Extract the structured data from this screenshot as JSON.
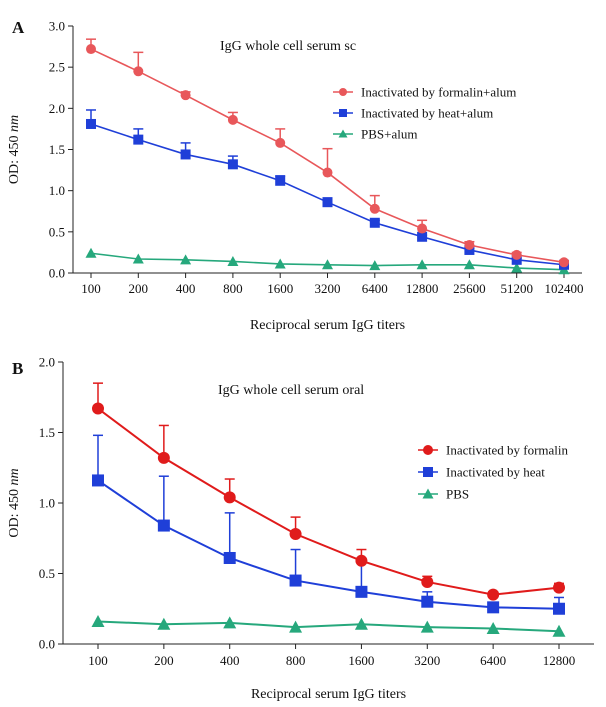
{
  "chart_data": [
    {
      "panel": "A",
      "type": "line",
      "title": "IgG whole cell serum sc",
      "xlabel": "Reciprocal serum IgG titers",
      "ylabel": "OD: 450 nm",
      "ylabel_main": "OD: 450 ",
      "ylabel_unit": "nm",
      "categories": [
        "100",
        "200",
        "400",
        "800",
        "1600",
        "3200",
        "6400",
        "12800",
        "25600",
        "51200",
        "102400"
      ],
      "ylim": [
        0,
        3.0
      ],
      "yticks": [
        "0.0",
        "0.5",
        "1.0",
        "1.5",
        "2.0",
        "2.5",
        "3.0"
      ],
      "legend_position": "top-right",
      "series": [
        {
          "name": "Inactivated by formalin+alum",
          "color": "#e8575a",
          "marker": "circle",
          "values": [
            2.72,
            2.45,
            2.16,
            1.86,
            1.58,
            1.22,
            0.78,
            0.54,
            0.34,
            0.22,
            0.13
          ],
          "errors": [
            0.12,
            0.23,
            0.04,
            0.09,
            0.17,
            0.29,
            0.16,
            0.1,
            0.04,
            0.03,
            0.02
          ]
        },
        {
          "name": "Inactivated by heat+alum",
          "color": "#1f3fd8",
          "marker": "square",
          "values": [
            1.81,
            1.62,
            1.44,
            1.32,
            1.12,
            0.86,
            0.61,
            0.44,
            0.28,
            0.16,
            0.1
          ],
          "errors": [
            0.17,
            0.13,
            0.14,
            0.1,
            0.06,
            0.05,
            0.03,
            0.02,
            0.02,
            0.02,
            0.01
          ]
        },
        {
          "name": "PBS+alum",
          "color": "#26a87c",
          "marker": "triangle",
          "values": [
            0.24,
            0.17,
            0.16,
            0.14,
            0.11,
            0.1,
            0.09,
            0.1,
            0.1,
            0.06,
            0.04
          ],
          "errors": [
            0,
            0,
            0,
            0,
            0,
            0,
            0,
            0,
            0,
            0,
            0
          ]
        }
      ]
    },
    {
      "panel": "B",
      "type": "line",
      "title": "IgG whole cell serum oral",
      "xlabel": "Reciprocal serum IgG titers",
      "ylabel": "OD: 450 nm",
      "ylabel_main": "OD: 450 ",
      "ylabel_unit": "nm",
      "categories": [
        "100",
        "200",
        "400",
        "800",
        "1600",
        "3200",
        "6400",
        "12800"
      ],
      "ylim": [
        0,
        2.0
      ],
      "yticks": [
        "0.0",
        "0.5",
        "1.0",
        "1.5",
        "2.0"
      ],
      "legend_position": "right",
      "series": [
        {
          "name": "Inactivated by formalin",
          "color": "#e01b1b",
          "marker": "circle",
          "values": [
            1.67,
            1.32,
            1.04,
            0.78,
            0.59,
            0.44,
            0.35,
            0.4
          ],
          "errors": [
            0.18,
            0.23,
            0.13,
            0.12,
            0.08,
            0.04,
            0.02,
            0.03
          ]
        },
        {
          "name": "Inactivated by heat",
          "color": "#1f3fd8",
          "marker": "square",
          "values": [
            1.16,
            0.84,
            0.61,
            0.45,
            0.37,
            0.3,
            0.26,
            0.25
          ],
          "errors": [
            0.32,
            0.35,
            0.32,
            0.22,
            0.21,
            0.07,
            0.03,
            0.08
          ]
        },
        {
          "name": "PBS",
          "color": "#26a87c",
          "marker": "triangle",
          "values": [
            0.16,
            0.14,
            0.15,
            0.12,
            0.14,
            0.12,
            0.11,
            0.09
          ],
          "errors": [
            0,
            0,
            0,
            0,
            0,
            0,
            0,
            0
          ]
        }
      ]
    }
  ]
}
